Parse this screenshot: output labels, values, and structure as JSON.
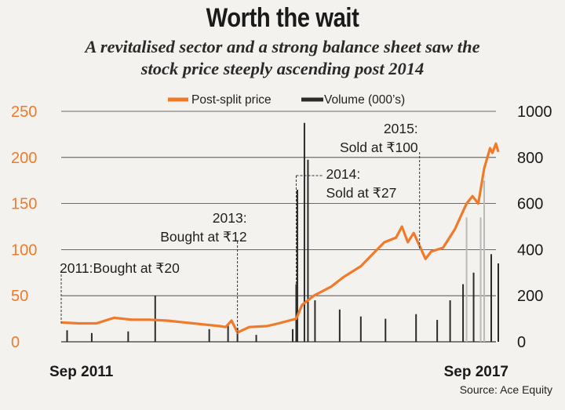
{
  "title": "Worth the wait",
  "subtitle_lines": [
    "A revitalised sector and a strong balance sheet saw the",
    "stock price steeply ascending post 2014"
  ],
  "source": "Source: Ace Equity",
  "colors": {
    "price": "#f07a2a",
    "volume": "#2b2b2b",
    "volume_light": "#b9b9b9",
    "grid": "#3a3a3a",
    "left_axis": "#f07a2a",
    "right_axis": "#1a1a1a"
  },
  "chart_data": {
    "type": "line",
    "legend": [
      "Post-split price",
      "Volume (000’s)"
    ],
    "legend_position": "top",
    "x_labels": [
      "Sep 2011",
      "Sep 2017"
    ],
    "x_range": [
      "2011-09",
      "2017-11"
    ],
    "y_left": {
      "ticks": [
        0,
        50,
        100,
        150,
        200,
        250
      ],
      "ylim": [
        0,
        250
      ],
      "label": ""
    },
    "y_right": {
      "ticks": [
        0,
        200,
        400,
        600,
        800,
        1000
      ],
      "ylim": [
        0,
        1000
      ],
      "label": ""
    },
    "grid": true,
    "series": [
      {
        "name": "Post-split price",
        "axis": "left",
        "points": [
          [
            "2011-09",
            21
          ],
          [
            "2011-12",
            20
          ],
          [
            "2012-03",
            20
          ],
          [
            "2012-06",
            26
          ],
          [
            "2012-09",
            24
          ],
          [
            "2012-12",
            24
          ],
          [
            "2013-03",
            23
          ],
          [
            "2013-06",
            21
          ],
          [
            "2013-09",
            19
          ],
          [
            "2013-12",
            17
          ],
          [
            "2014-01",
            16
          ],
          [
            "2014-02",
            23
          ],
          [
            "2014-03",
            10
          ],
          [
            "2014-05",
            16
          ],
          [
            "2014-08",
            17
          ],
          [
            "2014-10",
            20
          ],
          [
            "2015-01",
            25
          ],
          [
            "2015-02",
            40
          ],
          [
            "2015-04",
            50
          ],
          [
            "2015-07",
            60
          ],
          [
            "2015-09",
            70
          ],
          [
            "2015-12",
            82
          ],
          [
            "2016-02",
            95
          ],
          [
            "2016-04",
            108
          ],
          [
            "2016-06",
            113
          ],
          [
            "2016-07",
            125
          ],
          [
            "2016-08",
            108
          ],
          [
            "2016-09",
            118
          ],
          [
            "2016-11",
            90
          ],
          [
            "2016-12",
            98
          ],
          [
            "2017-02",
            102
          ],
          [
            "2017-04",
            122
          ],
          [
            "2017-06",
            150
          ],
          [
            "2017-07",
            158
          ],
          [
            "2017-08",
            150
          ],
          [
            "2017-09",
            188
          ],
          [
            "2017-10",
            210
          ],
          [
            "2017-10",
            205
          ],
          [
            "2017-11",
            215
          ],
          [
            "2017-11",
            206
          ]
        ]
      },
      {
        "name": "Volume (000’s)",
        "axis": "right",
        "points": [
          [
            "2011-10",
            50
          ],
          [
            "2012-02",
            38
          ],
          [
            "2012-08",
            45
          ],
          [
            "2013-01",
            200
          ],
          [
            "2013-10",
            55
          ],
          [
            "2014-01",
            75
          ],
          [
            "2014-03",
            60
          ],
          [
            "2014-06",
            30
          ],
          [
            "2014-12",
            55
          ],
          [
            "2015-01",
            250
          ],
          [
            "2015-01",
            660
          ],
          [
            "2015-02",
            950
          ],
          [
            "2015-03",
            790
          ],
          [
            "2015-04",
            180
          ],
          [
            "2015-08",
            140
          ],
          [
            "2015-12",
            110
          ],
          [
            "2016-04",
            100
          ],
          [
            "2016-09",
            120
          ],
          [
            "2017-01",
            95
          ],
          [
            "2017-03",
            180
          ],
          [
            "2017-05",
            250
          ],
          [
            "2017-06",
            540
          ],
          [
            "2017-07",
            300
          ],
          [
            "2017-08",
            540
          ],
          [
            "2017-09",
            700
          ],
          [
            "2017-10",
            380
          ],
          [
            "2017-11",
            340
          ]
        ]
      }
    ],
    "annotations": [
      {
        "lines": [
          "2011:Bought at ₹20"
        ],
        "x": "2011-09",
        "y_left": 20
      },
      {
        "lines": [
          "2013:",
          "Bought at ₹12"
        ],
        "x": "2014-03",
        "y_left": 10
      },
      {
        "lines": [
          "2014:",
          "Sold at ₹27"
        ],
        "x": "2015-01",
        "y_left": 27
      },
      {
        "lines": [
          "2015:",
          "Sold at ₹100"
        ],
        "x": "2016-10",
        "y_left": 100
      }
    ]
  }
}
